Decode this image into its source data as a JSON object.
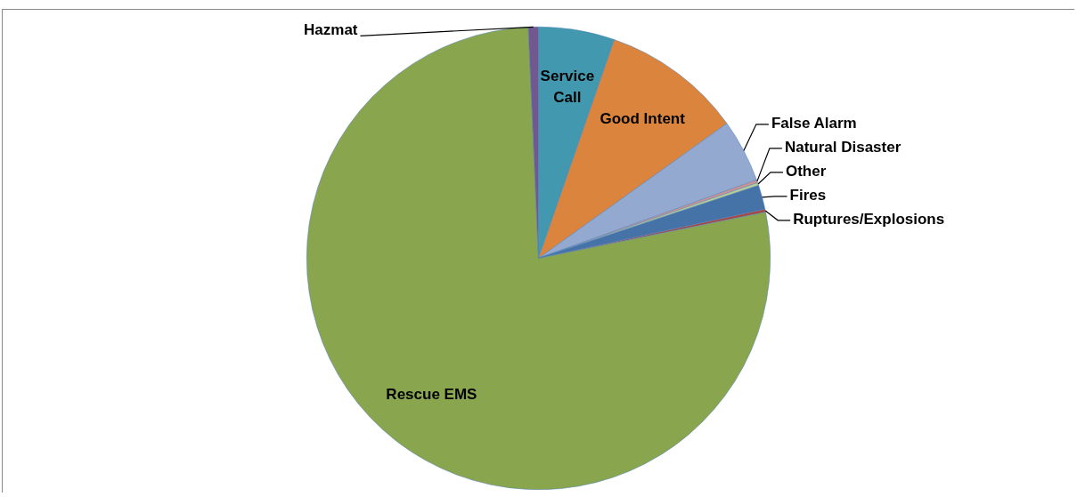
{
  "chart_data": {
    "type": "pie",
    "categories": [
      "Service Call",
      "Good Intent",
      "False Alarm",
      "Natural Disaster",
      "Other",
      "Fires",
      "Ruptures/Explosions",
      "Rescue EMS",
      "Hazmat"
    ],
    "values": [
      5.3,
      9.8,
      4.4,
      0.2,
      0.2,
      1.7,
      0.2,
      77.5,
      0.7
    ],
    "colors": [
      "#4198af",
      "#db843d",
      "#93a9cf",
      "#d19392",
      "#b9cd96",
      "#4572a7",
      "#aa4643",
      "#89a54e",
      "#71588f"
    ]
  }
}
